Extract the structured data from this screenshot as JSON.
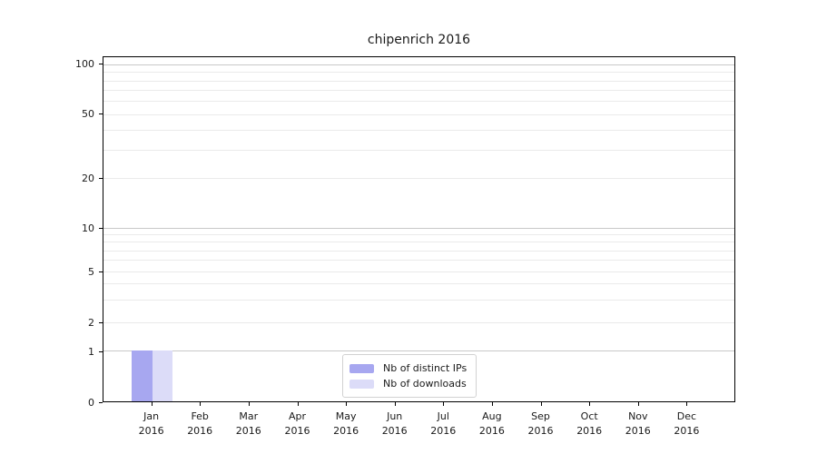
{
  "chart_data": {
    "type": "bar",
    "title": "chipenrich 2016",
    "categories": [
      "Jan",
      "Feb",
      "Mar",
      "Apr",
      "May",
      "Jun",
      "Jul",
      "Aug",
      "Sep",
      "Oct",
      "Nov",
      "Dec"
    ],
    "category_year": "2016",
    "series": [
      {
        "name": "Nb of distinct IPs",
        "color": "#a7a7f0",
        "values": [
          1,
          0,
          0,
          0,
          0,
          0,
          0,
          0,
          0,
          0,
          0,
          0
        ]
      },
      {
        "name": "Nb of downloads",
        "color": "#dcdcf8",
        "values": [
          1,
          0,
          0,
          0,
          0,
          0,
          0,
          0,
          0,
          0,
          0,
          0
        ]
      }
    ],
    "xlabel": "",
    "ylabel": "",
    "ylim": [
      0,
      110
    ],
    "yaxis": {
      "scale": "log-above-1-linear-below-1",
      "ticks": [
        {
          "label": "100",
          "value": 100,
          "f": 0.021
        },
        {
          "label": "50",
          "value": 50,
          "f": 0.1654
        },
        {
          "label": "20",
          "value": 20,
          "f": 0.3517
        },
        {
          "label": "10",
          "value": 10,
          "f": 0.4961
        },
        {
          "label": "5",
          "value": 5,
          "f": 0.622
        },
        {
          "label": "2",
          "value": 2,
          "f": 0.769
        },
        {
          "label": "1",
          "value": 1,
          "f": 0.853
        },
        {
          "label": "0",
          "value": 0,
          "f": 1.0
        }
      ],
      "gridlines": [
        {
          "value": 100,
          "f": 0.021,
          "major": true
        },
        {
          "value": 90,
          "f": 0.043,
          "major": false
        },
        {
          "value": 80,
          "f": 0.0674,
          "major": false
        },
        {
          "value": 70,
          "f": 0.0953,
          "major": false
        },
        {
          "value": 60,
          "f": 0.1273,
          "major": false
        },
        {
          "value": 50,
          "f": 0.1654,
          "major": false
        },
        {
          "value": 40,
          "f": 0.2108,
          "major": false
        },
        {
          "value": 30,
          "f": 0.2693,
          "major": false
        },
        {
          "value": 20,
          "f": 0.3517,
          "major": false
        },
        {
          "value": 10,
          "f": 0.4961,
          "major": true
        },
        {
          "value": 9,
          "f": 0.5152,
          "major": false
        },
        {
          "value": 8,
          "f": 0.5367,
          "major": false
        },
        {
          "value": 7,
          "f": 0.5609,
          "major": false
        },
        {
          "value": 6,
          "f": 0.5889,
          "major": false
        },
        {
          "value": 5,
          "f": 0.622,
          "major": false
        },
        {
          "value": 4,
          "f": 0.6577,
          "major": false
        },
        {
          "value": 3,
          "f": 0.7039,
          "major": false
        },
        {
          "value": 2,
          "f": 0.769,
          "major": false
        },
        {
          "value": 1,
          "f": 0.853,
          "major": true
        }
      ]
    },
    "value_fractions": {
      "0": 1.0,
      "1": 0.853
    },
    "legend": {
      "position": "lower-center",
      "border_color": "#d2d2d2"
    },
    "grid": "on",
    "colors": {
      "axis": "#000000",
      "grid_major": "#c9c9c9",
      "grid_minor": "#eaeaea",
      "text": "#1a1a1a"
    }
  }
}
